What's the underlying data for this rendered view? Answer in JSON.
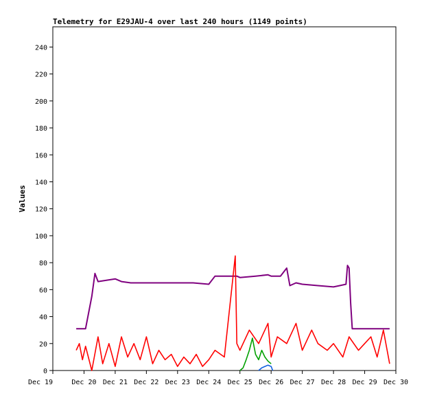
{
  "chart_data": {
    "type": "line",
    "title": "Telemetry for E29JAU-4 over last 240 hours (1149 points)",
    "xlabel": "",
    "ylabel": "Values",
    "ylim": [
      0,
      255
    ],
    "xlim": [
      0,
      11
    ],
    "grid": false,
    "x_ticks": [
      "Dec 19",
      "Dec 20",
      "Dec 21",
      "Dec 22",
      "Dec 23",
      "Dec 24",
      "Dec 25",
      "Dec 26",
      "Dec 27",
      "Dec 28",
      "Dec 29",
      "Dec 30"
    ],
    "y_ticks": [
      0,
      20,
      40,
      60,
      80,
      100,
      120,
      140,
      160,
      180,
      200,
      220,
      240
    ],
    "series": [
      {
        "color": "#7f007f",
        "x": [
          0.75,
          1.05,
          1.25,
          1.35,
          1.45,
          2.0,
          2.2,
          2.5,
          3.0,
          3.5,
          4.0,
          4.5,
          5.0,
          5.2,
          5.4,
          5.9,
          6.0,
          6.5,
          6.9,
          7.0,
          7.3,
          7.5,
          7.6,
          7.8,
          8.0,
          8.5,
          9.0,
          9.2,
          9.4,
          9.45,
          9.5,
          9.55,
          9.6,
          10.0,
          10.5,
          10.8
        ],
        "values": [
          31,
          31,
          55,
          72,
          66,
          68,
          66,
          65,
          65,
          65,
          65,
          65,
          64,
          70,
          70,
          70,
          69,
          70,
          71,
          70,
          70,
          76,
          63,
          65,
          64,
          63,
          62,
          63,
          64,
          78,
          76,
          50,
          31,
          31,
          31,
          31
        ]
      },
      {
        "color": "#ff0000",
        "x": [
          0.75,
          0.85,
          0.95,
          1.05,
          1.25,
          1.45,
          1.6,
          1.8,
          2.0,
          2.2,
          2.4,
          2.6,
          2.8,
          3.0,
          3.2,
          3.4,
          3.6,
          3.8,
          4.0,
          4.2,
          4.4,
          4.6,
          4.8,
          5.0,
          5.2,
          5.5,
          5.85,
          5.9,
          6.0,
          6.3,
          6.6,
          6.9,
          7.0,
          7.2,
          7.5,
          7.8,
          8.0,
          8.3,
          8.5,
          8.8,
          9.0,
          9.3,
          9.5,
          9.8,
          10.0,
          10.2,
          10.4,
          10.6,
          10.8
        ],
        "values": [
          15,
          20,
          8,
          18,
          0,
          25,
          5,
          20,
          3,
          25,
          10,
          20,
          8,
          25,
          5,
          15,
          8,
          12,
          3,
          10,
          5,
          12,
          3,
          8,
          15,
          10,
          85,
          20,
          15,
          30,
          20,
          35,
          10,
          25,
          20,
          35,
          15,
          30,
          20,
          15,
          20,
          10,
          25,
          15,
          20,
          25,
          10,
          30,
          5
        ]
      },
      {
        "color": "#00a000",
        "x": [
          6.0,
          6.1,
          6.2,
          6.3,
          6.4,
          6.5,
          6.6,
          6.7,
          6.8,
          6.9,
          7.0
        ],
        "values": [
          0,
          2,
          8,
          15,
          24,
          12,
          8,
          15,
          10,
          7,
          5
        ]
      },
      {
        "color": "#1060e0",
        "x": [
          6.6,
          6.7,
          6.8,
          6.9,
          7.0,
          7.05
        ],
        "values": [
          0,
          2,
          3,
          4,
          3,
          0
        ]
      }
    ]
  }
}
